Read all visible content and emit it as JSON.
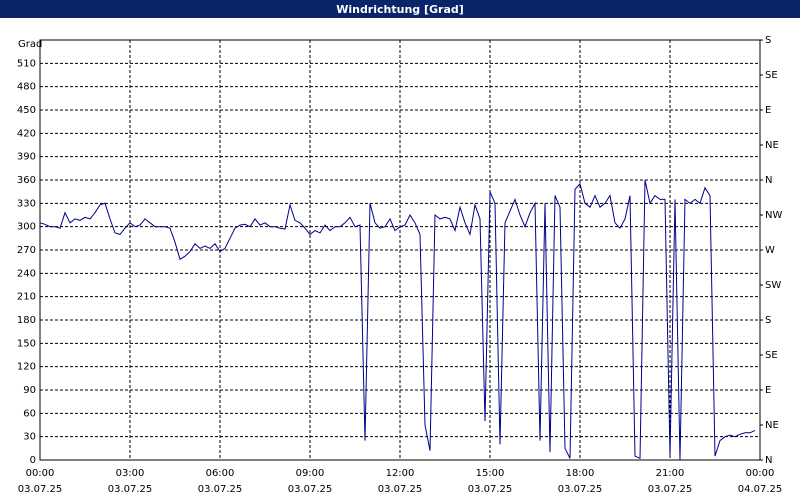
{
  "chart_data": {
    "type": "line",
    "title": "Windrichtung [Grad]",
    "y_label": "Grad",
    "color": "#00008b",
    "grid": true,
    "xlim": [
      0,
      1440
    ],
    "xticks": [
      {
        "value": 0,
        "label": "00:00"
      },
      {
        "value": 180,
        "label": "03:00"
      },
      {
        "value": 360,
        "label": "06:00"
      },
      {
        "value": 540,
        "label": "09:00"
      },
      {
        "value": 720,
        "label": "12:00"
      },
      {
        "value": 900,
        "label": "15:00"
      },
      {
        "value": 1080,
        "label": "18:00"
      },
      {
        "value": 1260,
        "label": "21:00"
      },
      {
        "value": 1440,
        "label": "00:00"
      }
    ],
    "xtick_dates": [
      "03.07.25",
      "03.07.25",
      "03.07.25",
      "03.07.25",
      "03.07.25",
      "03.07.25",
      "03.07.25",
      "03.07.25",
      "04.07.25"
    ],
    "ylim": [
      0,
      540
    ],
    "yticks": [
      0,
      30,
      60,
      90,
      120,
      150,
      180,
      210,
      240,
      270,
      300,
      330,
      360,
      390,
      420,
      450,
      480,
      510
    ],
    "y2lim": [
      0,
      540
    ],
    "y2ticks": [
      {
        "value": 0,
        "label": "N"
      },
      {
        "value": 45,
        "label": "NE"
      },
      {
        "value": 90,
        "label": "E"
      },
      {
        "value": 135,
        "label": "SE"
      },
      {
        "value": 180,
        "label": "S"
      },
      {
        "value": 225,
        "label": "SW"
      },
      {
        "value": 270,
        "label": "W"
      },
      {
        "value": 315,
        "label": "NW"
      },
      {
        "value": 360,
        "label": "N"
      },
      {
        "value": 405,
        "label": "NE"
      },
      {
        "value": 450,
        "label": "E"
      },
      {
        "value": 495,
        "label": "SE"
      },
      {
        "value": 540,
        "label": "S"
      }
    ],
    "x": [
      0,
      10,
      20,
      30,
      40,
      50,
      60,
      70,
      80,
      90,
      100,
      110,
      120,
      130,
      140,
      150,
      160,
      170,
      180,
      190,
      200,
      210,
      220,
      230,
      240,
      250,
      260,
      270,
      280,
      290,
      300,
      310,
      320,
      330,
      340,
      350,
      360,
      370,
      380,
      390,
      400,
      410,
      420,
      430,
      440,
      450,
      460,
      470,
      480,
      490,
      500,
      510,
      520,
      530,
      540,
      550,
      560,
      570,
      580,
      590,
      600,
      610,
      620,
      630,
      640,
      650,
      660,
      670,
      680,
      690,
      700,
      710,
      720,
      730,
      740,
      750,
      760,
      770,
      780,
      790,
      800,
      810,
      820,
      830,
      840,
      850,
      860,
      870,
      880,
      890,
      900,
      910,
      920,
      930,
      940,
      950,
      960,
      970,
      980,
      990,
      1000,
      1010,
      1020,
      1030,
      1040,
      1050,
      1060,
      1070,
      1080,
      1090,
      1100,
      1110,
      1120,
      1130,
      1140,
      1150,
      1160,
      1170,
      1180,
      1190,
      1200,
      1210,
      1220,
      1230,
      1240,
      1250,
      1260,
      1270,
      1280,
      1290,
      1300,
      1310,
      1320,
      1330,
      1340,
      1350,
      1360,
      1370,
      1380,
      1390,
      1400,
      1410,
      1420,
      1430
    ],
    "values": [
      305,
      303,
      300,
      300,
      298,
      318,
      305,
      310,
      308,
      312,
      310,
      318,
      328,
      330,
      310,
      292,
      290,
      298,
      305,
      300,
      302,
      310,
      305,
      300,
      300,
      300,
      298,
      280,
      258,
      262,
      268,
      278,
      272,
      275,
      272,
      278,
      268,
      272,
      285,
      298,
      302,
      303,
      300,
      310,
      302,
      305,
      300,
      300,
      298,
      297,
      328,
      308,
      305,
      298,
      290,
      295,
      292,
      302,
      295,
      300,
      300,
      305,
      312,
      300,
      302,
      25,
      330,
      305,
      298,
      300,
      310,
      295,
      300,
      302,
      315,
      305,
      290,
      45,
      12,
      315,
      310,
      312,
      310,
      295,
      325,
      305,
      290,
      328,
      310,
      50,
      345,
      330,
      20,
      305,
      320,
      335,
      315,
      300,
      318,
      330,
      25,
      330,
      10,
      340,
      325,
      15,
      2,
      348,
      355,
      330,
      325,
      340,
      325,
      330,
      340,
      305,
      298,
      310,
      340,
      5,
      2,
      360,
      330,
      340,
      335,
      335,
      5,
      335,
      0,
      335,
      330,
      335,
      330,
      350,
      340,
      5,
      25,
      30,
      32,
      30,
      33,
      35,
      35,
      38
    ]
  }
}
